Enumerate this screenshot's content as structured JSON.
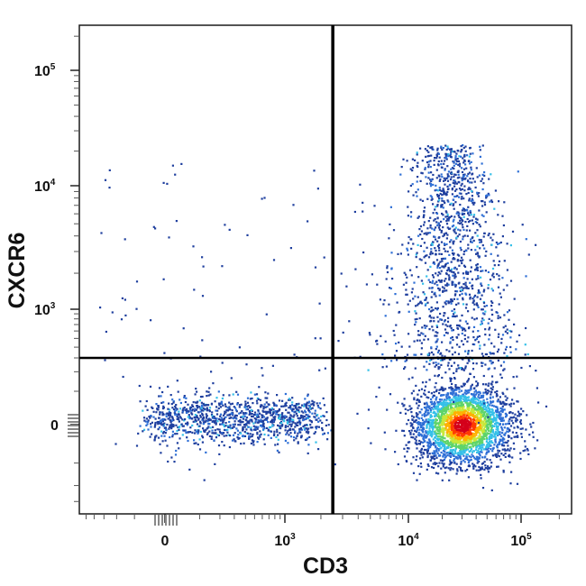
{
  "chart_data": {
    "type": "scatter",
    "title": "",
    "xlabel": "CD3",
    "ylabel": "CXCR6",
    "x_scale": "biexponential",
    "y_scale": "biexponential",
    "xlim": [
      -600,
      250000
    ],
    "ylim": [
      -400,
      250000
    ],
    "grid": false,
    "legend": "none",
    "x_ticks": [
      {
        "value": 0,
        "base": "0",
        "exp": ""
      },
      {
        "value": 1000,
        "base": "10",
        "exp": "3"
      },
      {
        "value": 10000,
        "base": "10",
        "exp": "4"
      },
      {
        "value": 100000,
        "base": "10",
        "exp": "5"
      }
    ],
    "y_ticks": [
      {
        "value": 0,
        "base": "0",
        "exp": ""
      },
      {
        "value": 1000,
        "base": "10",
        "exp": "3"
      },
      {
        "value": 10000,
        "base": "10",
        "exp": "4"
      },
      {
        "value": 100000,
        "base": "10",
        "exp": "5"
      }
    ],
    "quadrant_gates": {
      "x": 2500,
      "y": 300
    },
    "populations": [
      {
        "label": "CD3- CXCR6-",
        "x_range": [
          -50,
          1500
        ],
        "y_range": [
          -120,
          90
        ]
      },
      {
        "label": "CD3+ CXCR6- (dense core)",
        "x_center": 30000,
        "y_center": 0
      },
      {
        "label": "CD3+ CXCR6+",
        "x_range": [
          12000,
          60000
        ],
        "y_range": [
          300,
          15000
        ]
      }
    ],
    "density_colors": [
      "#1f3f9e",
      "#2e6fd6",
      "#35c0e8",
      "#5fd46a",
      "#c8e83a",
      "#ffb000",
      "#ff3a00",
      "#d4001a"
    ]
  }
}
